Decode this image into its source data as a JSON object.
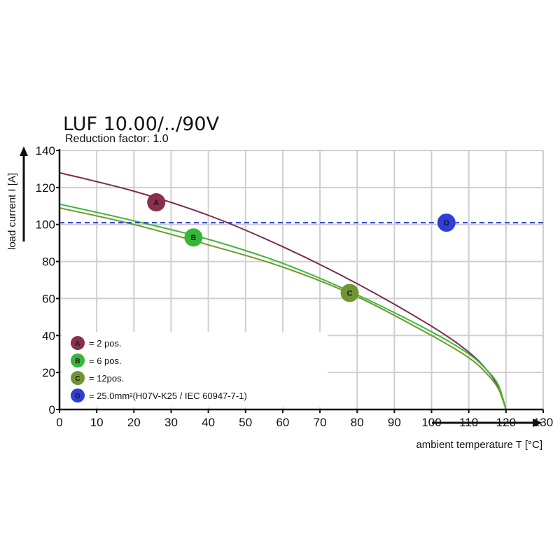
{
  "chart_data": {
    "type": "line",
    "title": "LUF 10.00/../90V",
    "subtitle": "Reduction factor: 1.0",
    "xlabel": "ambient temperature T [°C]",
    "ylabel": "load current I [A]",
    "xlim": [
      0,
      130
    ],
    "ylim": [
      0,
      140
    ],
    "x_ticks": [
      0,
      10,
      20,
      30,
      40,
      50,
      60,
      70,
      80,
      90,
      100,
      110,
      120,
      130
    ],
    "y_ticks": [
      0,
      20,
      40,
      60,
      80,
      100,
      120,
      140
    ],
    "grid": true,
    "legend_position": "bottom-left",
    "series": [
      {
        "name": "A",
        "label": "= 2 pos.",
        "color": "#7b2d4a",
        "marker_color": "#8b2f4e",
        "marker": {
          "x": 26,
          "y": 112
        },
        "x": [
          0,
          20,
          40,
          60,
          80,
          100,
          110,
          115,
          118,
          120
        ],
        "y": [
          128,
          118,
          105,
          88,
          68,
          45,
          31,
          21,
          12,
          0
        ]
      },
      {
        "name": "B",
        "label": "= 6 pos.",
        "color": "#3cb83c",
        "marker_color": "#38b63a",
        "marker": {
          "x": 36,
          "y": 93
        },
        "x": [
          0,
          20,
          40,
          60,
          80,
          100,
          110,
          115,
          118,
          120
        ],
        "y": [
          111,
          102,
          92,
          79,
          62,
          42,
          30,
          21,
          13,
          0
        ]
      },
      {
        "name": "C",
        "label": "= 12pos.",
        "color": "#6e9a2a",
        "marker_color": "#6f9530",
        "marker": {
          "x": 78,
          "y": 63
        },
        "x": [
          0,
          20,
          40,
          60,
          80,
          100,
          110,
          115,
          118,
          120
        ],
        "y": [
          109,
          100,
          89,
          77,
          61,
          40,
          28,
          19,
          11,
          0
        ]
      },
      {
        "name": "D",
        "label": "= 25.0mm²(H07V-K25 / IEC 60947-7-1)",
        "color": "#2a3fd0",
        "marker_color": "#2d3fd8",
        "dashed": true,
        "marker": {
          "x": 104,
          "y": 101
        },
        "x": [
          0,
          130
        ],
        "y": [
          101,
          101
        ]
      }
    ]
  }
}
